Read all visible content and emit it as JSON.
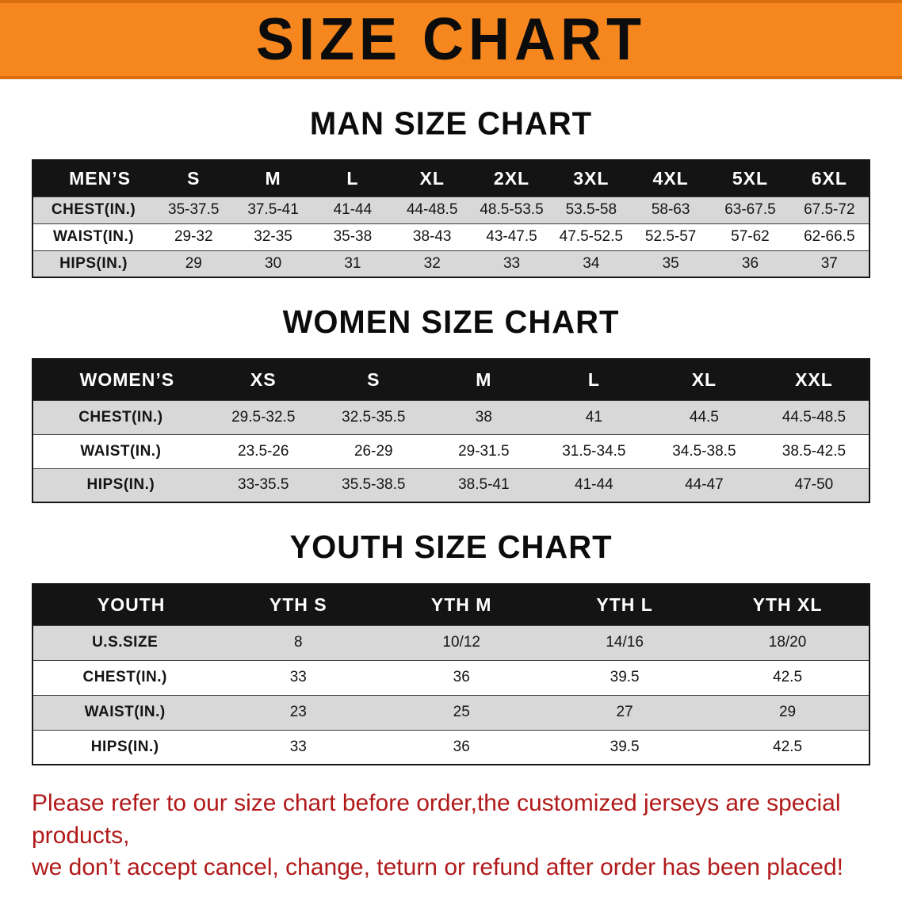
{
  "banner": {
    "title": "SIZE CHART"
  },
  "headings": {
    "men": "MAN SIZE CHART",
    "women": "WOMEN SIZE CHART",
    "youth": "YOUTH SIZE CHART"
  },
  "tables": {
    "men": {
      "header": [
        "MEN’S",
        "S",
        "M",
        "L",
        "XL",
        "2XL",
        "3XL",
        "4XL",
        "5XL",
        "6XL"
      ],
      "rows": [
        {
          "label": "CHEST(IN.)",
          "values": [
            "35-37.5",
            "37.5-41",
            "41-44",
            "44-48.5",
            "48.5-53.5",
            "53.5-58",
            "58-63",
            "63-67.5",
            "67.5-72"
          ]
        },
        {
          "label": "WAIST(IN.)",
          "values": [
            "29-32",
            "32-35",
            "35-38",
            "38-43",
            "43-47.5",
            "47.5-52.5",
            "52.5-57",
            "57-62",
            "62-66.5"
          ]
        },
        {
          "label": "HIPS(IN.)",
          "values": [
            "29",
            "30",
            "31",
            "32",
            "33",
            "34",
            "35",
            "36",
            "37"
          ]
        }
      ]
    },
    "women": {
      "header": [
        "WOMEN’S",
        "XS",
        "S",
        "M",
        "L",
        "XL",
        "XXL"
      ],
      "rows": [
        {
          "label": "CHEST(IN.)",
          "values": [
            "29.5-32.5",
            "32.5-35.5",
            "38",
            "41",
            "44.5",
            "44.5-48.5"
          ]
        },
        {
          "label": "WAIST(IN.)",
          "values": [
            "23.5-26",
            "26-29",
            "29-31.5",
            "31.5-34.5",
            "34.5-38.5",
            "38.5-42.5"
          ]
        },
        {
          "label": "HIPS(IN.)",
          "values": [
            "33-35.5",
            "35.5-38.5",
            "38.5-41",
            "41-44",
            "44-47",
            "47-50"
          ]
        }
      ]
    },
    "youth": {
      "header": [
        "YOUTH",
        "YTH S",
        "YTH M",
        "YTH L",
        "YTH XL"
      ],
      "rows": [
        {
          "label": "U.S.SIZE",
          "values": [
            "8",
            "10/12",
            "14/16",
            "18/20"
          ]
        },
        {
          "label": "CHEST(IN.)",
          "values": [
            "33",
            "36",
            "39.5",
            "42.5"
          ]
        },
        {
          "label": "WAIST(IN.)",
          "values": [
            "23",
            "25",
            "27",
            "29"
          ]
        },
        {
          "label": "HIPS(IN.)",
          "values": [
            "33",
            "36",
            "39.5",
            "42.5"
          ]
        }
      ]
    }
  },
  "footer": {
    "line1": "Please refer to our size chart before order,the customized jerseys are special products,",
    "line2": "we don’t accept cancel, change, teturn or refund after order has been placed!"
  },
  "colors": {
    "banner_orange": "#f6871f",
    "banner_edge": "#d96f0e",
    "header_black": "#141414",
    "row_gray": "#d8d8d8",
    "footer_red": "#b11a1a"
  }
}
